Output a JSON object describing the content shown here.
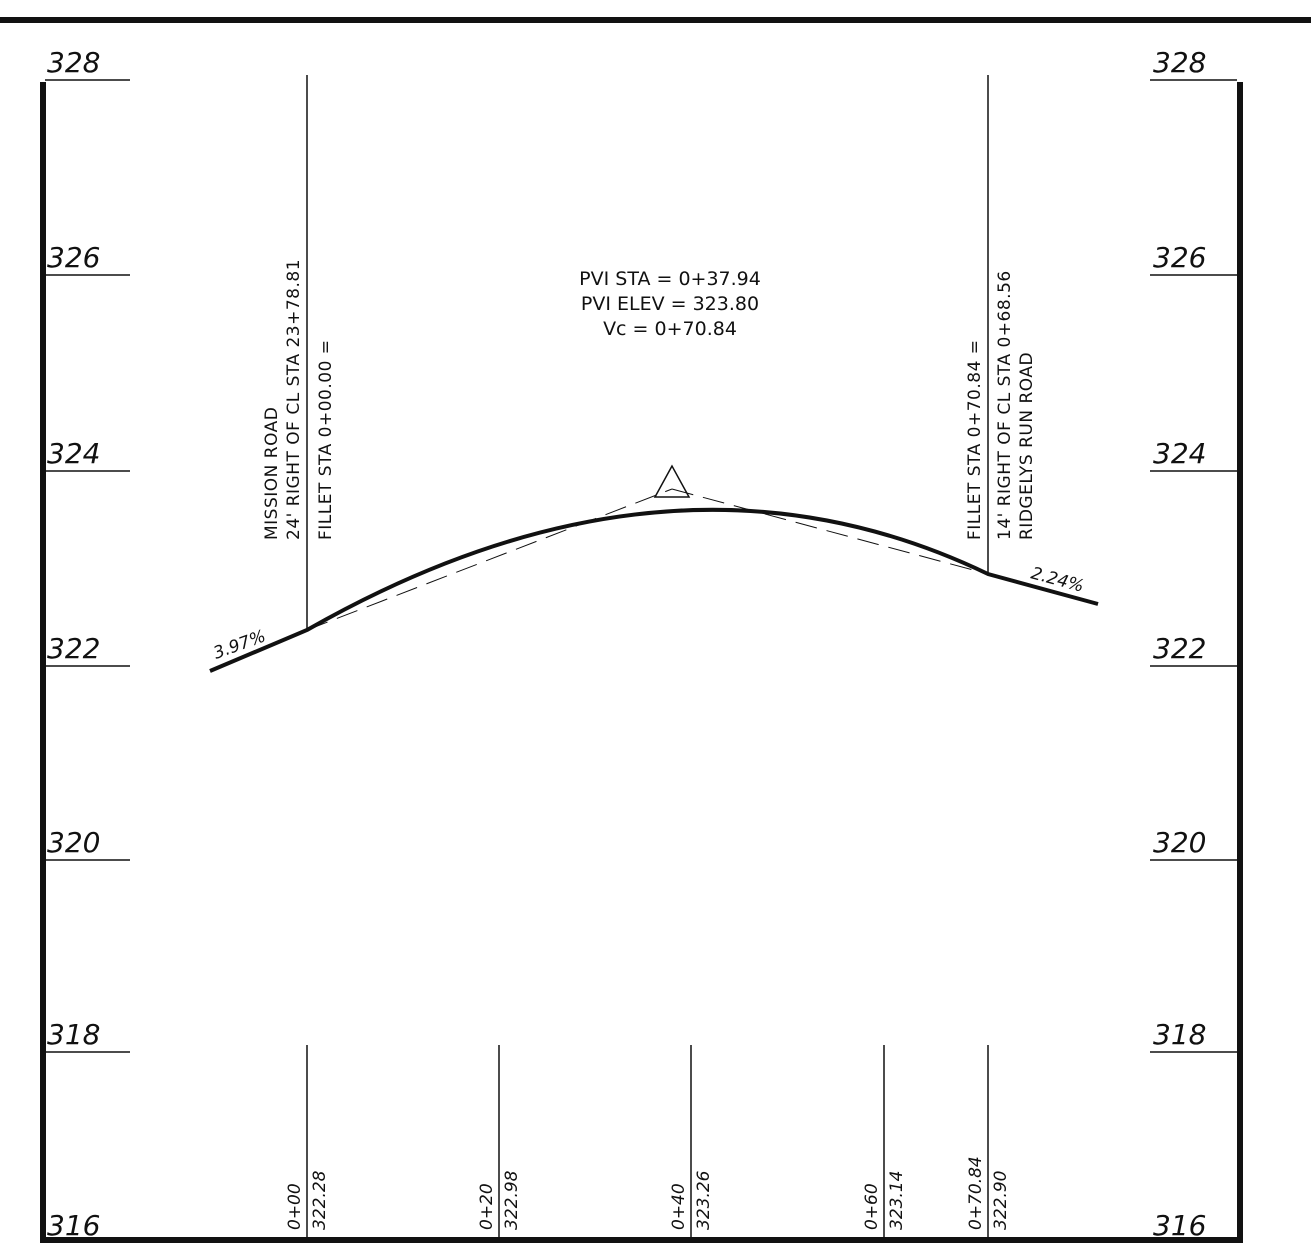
{
  "profile": {
    "elevations": [
      "328",
      "326",
      "324",
      "322",
      "320",
      "318",
      "316"
    ],
    "pvi": {
      "lines": [
        "PVI STA = 0+37.94",
        "PVI ELEV = 323.80",
        "Vc = 0+70.84"
      ]
    },
    "grades": {
      "left": "3.97%",
      "right": "2.24%"
    },
    "left_note": [
      "MISSION ROAD",
      "24' RIGHT OF CL STA 23+78.81",
      "FILLET STA 0+00.00 ="
    ],
    "right_note": [
      "FILLET STA 0+70.84 =",
      "14' RIGHT OF CL STA 0+68.56",
      "RIDGELYS RUN ROAD"
    ],
    "stations": [
      {
        "station": "0+00",
        "elevation": "322.28"
      },
      {
        "station": "0+20",
        "elevation": "322.98"
      },
      {
        "station": "0+40",
        "elevation": "323.26"
      },
      {
        "station": "0+60",
        "elevation": "323.14"
      },
      {
        "station": "0+70.84",
        "elevation": "322.90"
      }
    ]
  }
}
